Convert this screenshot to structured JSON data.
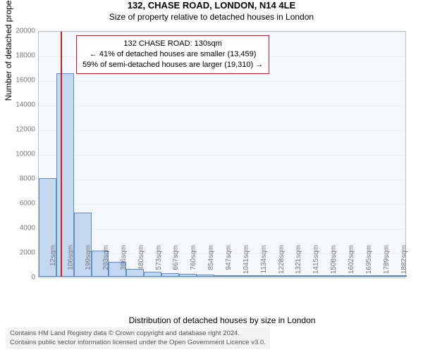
{
  "title": "132, CHASE ROAD, LONDON, N14 4LE",
  "subtitle": "Size of property relative to detached houses in London",
  "xlabel": "Distribution of detached houses by size in London",
  "ylabel": "Number of detached properties",
  "chart": {
    "type": "histogram",
    "background_color": "#f6f8fb",
    "border_color": "#b8c0cc",
    "grid_color": "#edf0f4",
    "bar_fill": "#c3d7ee",
    "bar_stroke": "#5b8fc7",
    "marker_color": "#d11b1b",
    "ylim": [
      0,
      20000
    ],
    "ytick_step": 2000,
    "yticks": [
      0,
      2000,
      4000,
      6000,
      8000,
      10000,
      12000,
      14000,
      16000,
      18000,
      20000
    ],
    "bins": [
      {
        "label": "12sqm",
        "value": 8000
      },
      {
        "label": "106sqm",
        "value": 16500
      },
      {
        "label": "199sqm",
        "value": 5200
      },
      {
        "label": "293sqm",
        "value": 2100
      },
      {
        "label": "386sqm",
        "value": 1200
      },
      {
        "label": "480sqm",
        "value": 650
      },
      {
        "label": "573sqm",
        "value": 420
      },
      {
        "label": "667sqm",
        "value": 300
      },
      {
        "label": "760sqm",
        "value": 230
      },
      {
        "label": "854sqm",
        "value": 180
      },
      {
        "label": "947sqm",
        "value": 120
      },
      {
        "label": "1041sqm",
        "value": 90
      },
      {
        "label": "1134sqm",
        "value": 65
      },
      {
        "label": "1228sqm",
        "value": 48
      },
      {
        "label": "1321sqm",
        "value": 34
      },
      {
        "label": "1415sqm",
        "value": 24
      },
      {
        "label": "1508sqm",
        "value": 17
      },
      {
        "label": "1602sqm",
        "value": 12
      },
      {
        "label": "1695sqm",
        "value": 9
      },
      {
        "label": "1789sqm",
        "value": 6
      },
      {
        "label": "1882sqm",
        "value": 4
      }
    ],
    "marker_bin_index": 1,
    "marker_fraction_in_bin": 0.26
  },
  "annotation": {
    "line1": "132 CHASE ROAD: 130sqm",
    "line2": "← 41% of detached houses are smaller (13,459)",
    "line3": "59% of semi-detached houses are larger (19,310) →"
  },
  "footer": {
    "line1": "Contains HM Land Registry data © Crown copyright and database right 2024.",
    "line2": "Contains public sector information licensed under the Open Government Licence v3.0."
  }
}
